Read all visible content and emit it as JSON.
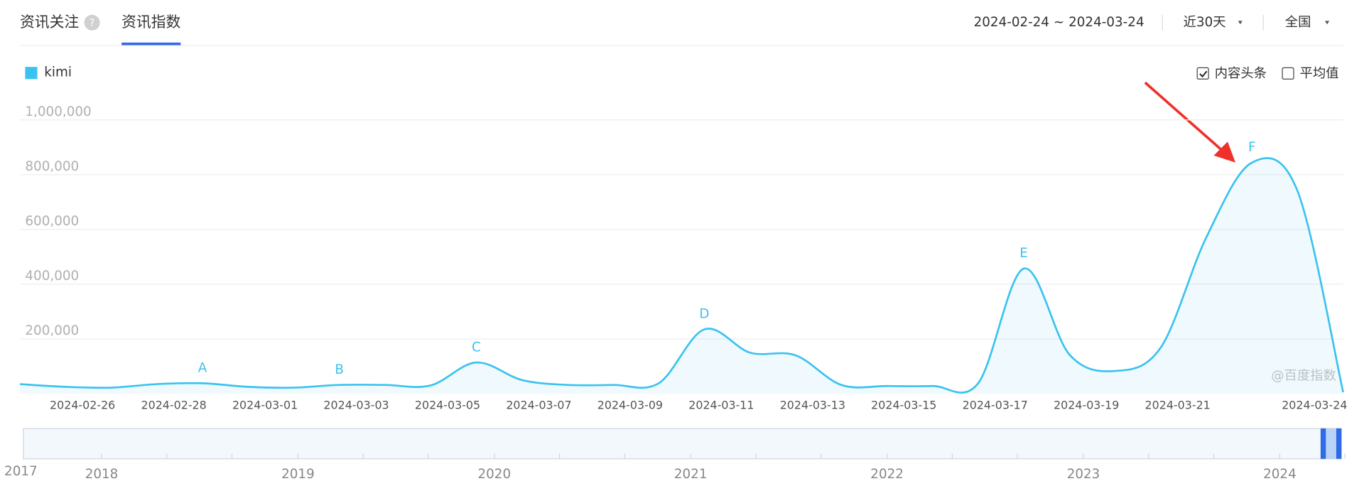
{
  "header": {
    "tabs": [
      "资讯关注",
      "资讯指数"
    ],
    "help": "?",
    "date_range": "2024-02-24 ~ 2024-03-24",
    "period": "近30天",
    "region": "全国"
  },
  "options": [
    {
      "label": "内容头条",
      "checked": true
    },
    {
      "label": "平均值",
      "checked": false
    }
  ],
  "watermark": "@百度指数",
  "navigator": {
    "years": [
      "2017",
      "2018",
      "2019",
      "2020",
      "2021",
      "2022",
      "2023",
      "2024"
    ]
  },
  "chart_data": {
    "type": "line",
    "categories": [
      null,
      null,
      "2024-02-26",
      null,
      "2024-02-28",
      null,
      "2024-03-01",
      null,
      "2024-03-03",
      null,
      "2024-03-05",
      null,
      "2024-03-07",
      null,
      "2024-03-09",
      null,
      "2024-03-11",
      null,
      "2024-03-13",
      null,
      "2024-03-15",
      null,
      "2024-03-17",
      null,
      "2024-03-19",
      null,
      "2024-03-21",
      null,
      null,
      "2024-03-24"
    ],
    "series": [
      {
        "name": "kimi",
        "color": "#3ac3ef",
        "values": [
          35000,
          25000,
          22000,
          35000,
          38000,
          25000,
          22000,
          32000,
          32000,
          30000,
          114000,
          50000,
          32000,
          32000,
          38000,
          235000,
          150000,
          140000,
          32000,
          28000,
          28000,
          38000,
          457000,
          143000,
          83000,
          168000,
          571000,
          844000,
          740000,
          5000
        ],
        "point_labels": [
          null,
          null,
          null,
          null,
          "A",
          null,
          null,
          "B",
          null,
          null,
          "C",
          null,
          null,
          null,
          null,
          "D",
          null,
          null,
          null,
          null,
          null,
          null,
          "E",
          null,
          null,
          null,
          null,
          "F",
          null,
          null
        ]
      }
    ],
    "ylim": [
      0,
      1000000
    ],
    "yticks": [
      {
        "value": 200000,
        "label": "200,000"
      },
      {
        "value": 400000,
        "label": "400,000"
      },
      {
        "value": 600000,
        "label": "600,000"
      },
      {
        "value": 800000,
        "label": "800,000"
      },
      {
        "value": 1000000,
        "label": "1,000,000"
      }
    ],
    "grid": true
  }
}
